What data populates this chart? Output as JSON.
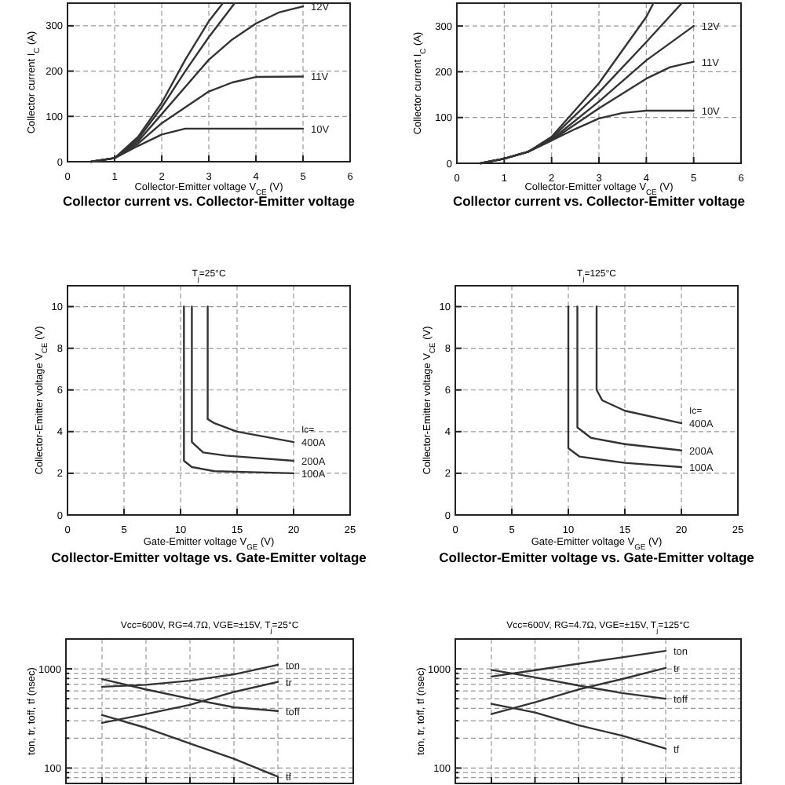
{
  "chart_data": [
    {
      "type": "line",
      "title": "Collector current vs. Collector-Emitter voltage",
      "xlabel": "Collector-Emitter voltage   V$_{CE}$ (V)",
      "ylabel": "Collector current   I$_{C}$ (A)",
      "xlim": [
        0,
        6
      ],
      "ylim": [
        0,
        350
      ],
      "xticks": [
        0,
        1,
        2,
        3,
        4,
        5,
        6
      ],
      "yticks": [
        0,
        100,
        200,
        300
      ],
      "grid": true,
      "series": [
        {
          "x": [
            0.5,
            1,
            1.5,
            2,
            2.5,
            3,
            3.3
          ],
          "values": [
            0,
            8,
            55,
            130,
            225,
            310,
            350
          ],
          "color": "#333333"
        },
        {
          "x": [
            0.5,
            1,
            1.5,
            2,
            2.5,
            3,
            3.55
          ],
          "values": [
            0,
            8,
            50,
            120,
            200,
            275,
            350
          ],
          "color": "#333333"
        },
        {
          "name": "12V",
          "x": [
            0.5,
            1,
            1.5,
            2,
            2.5,
            3,
            3.5,
            4,
            4.5,
            5
          ],
          "values": [
            0,
            8,
            45,
            105,
            165,
            225,
            270,
            305,
            330,
            343
          ],
          "color": "#333333"
        },
        {
          "name": "11V",
          "x": [
            0.5,
            1,
            1.5,
            2,
            2.5,
            3,
            3.5,
            4,
            5
          ],
          "values": [
            0,
            8,
            40,
            85,
            120,
            155,
            175,
            187,
            188
          ],
          "color": "#333333"
        },
        {
          "name": "10V",
          "x": [
            0.5,
            1,
            1.5,
            2,
            2.5,
            3,
            5
          ],
          "values": [
            0,
            8,
            35,
            60,
            73,
            73,
            73
          ],
          "color": "#333333"
        }
      ]
    },
    {
      "type": "line",
      "title": "Collector current vs. Collector-Emitter voltage",
      "xlabel": "Collector-Emitter voltage   V$_{CE}$ (V)",
      "ylabel": "Collector current   I$_{C}$ (A)",
      "xlim": [
        0,
        6
      ],
      "ylim": [
        0,
        350
      ],
      "xticks": [
        0,
        1,
        2,
        3,
        4,
        5,
        6
      ],
      "yticks": [
        0,
        100,
        200,
        300
      ],
      "grid": true,
      "series": [
        {
          "x": [
            0.5,
            1,
            1.5,
            2,
            3,
            4,
            4.15
          ],
          "values": [
            0,
            10,
            25,
            58,
            175,
            320,
            350
          ],
          "color": "#333333"
        },
        {
          "x": [
            0.5,
            1,
            1.5,
            2,
            3,
            4,
            4.75
          ],
          "values": [
            0,
            10,
            25,
            55,
            155,
            265,
            350
          ],
          "color": "#333333"
        },
        {
          "name": "12V",
          "x": [
            0.5,
            1,
            1.5,
            2,
            3,
            4,
            5
          ],
          "values": [
            0,
            10,
            25,
            52,
            135,
            225,
            300
          ],
          "color": "#333333"
        },
        {
          "name": "11V",
          "x": [
            0.5,
            1,
            1.5,
            2,
            3,
            4,
            4.5,
            5
          ],
          "values": [
            0,
            10,
            25,
            50,
            120,
            185,
            210,
            222
          ],
          "color": "#333333"
        },
        {
          "name": "10V",
          "x": [
            0.5,
            1,
            1.5,
            2,
            2.5,
            3,
            3.5,
            4,
            5
          ],
          "values": [
            0,
            10,
            25,
            50,
            75,
            98,
            110,
            115,
            115
          ],
          "color": "#333333"
        }
      ]
    },
    {
      "type": "line",
      "title": "Collector-Emitter voltage vs. Gate-Emitter voltage",
      "subtitle": "T$_{j}$=25°C",
      "xlabel": "Gate-Emitter voltage   V$_{GE}$ (V)",
      "ylabel": "Collector-Emitter voltage   V$_{CE}$ (V)",
      "xlim": [
        0,
        25
      ],
      "ylim": [
        0,
        11
      ],
      "xticks": [
        0,
        5,
        10,
        15,
        20,
        25
      ],
      "yticks": [
        0,
        2,
        4,
        6,
        8,
        10
      ],
      "grid": true,
      "annotations": [
        "Ic="
      ],
      "series": [
        {
          "name": "400A",
          "x": [
            12.4,
            12.4,
            13,
            15,
            17,
            20
          ],
          "values": [
            10,
            4.6,
            4.4,
            4.0,
            3.8,
            3.5
          ],
          "color": "#333333"
        },
        {
          "name": "200A",
          "x": [
            11,
            11,
            12,
            14,
            20
          ],
          "values": [
            10,
            3.5,
            3.0,
            2.85,
            2.6
          ],
          "color": "#333333"
        },
        {
          "name": "100A",
          "x": [
            10.3,
            10.3,
            11,
            13,
            20
          ],
          "values": [
            10,
            2.6,
            2.3,
            2.1,
            2.0
          ],
          "color": "#333333"
        }
      ]
    },
    {
      "type": "line",
      "title": "Collector-Emitter voltage vs. Gate-Emitter voltage",
      "subtitle": "T$_{j}$=125°C",
      "xlabel": "Gate-Emitter voltage   V$_{GE}$ (V)",
      "ylabel": "Collector-Emitter voltage   V$_{CE}$ (V)",
      "xlim": [
        0,
        25
      ],
      "ylim": [
        0,
        11
      ],
      "xticks": [
        0,
        5,
        10,
        15,
        20,
        25
      ],
      "yticks": [
        0,
        2,
        4,
        6,
        8,
        10
      ],
      "grid": true,
      "annotations": [
        "Ic="
      ],
      "series": [
        {
          "name": "400A",
          "x": [
            12.5,
            12.5,
            13,
            15,
            20
          ],
          "values": [
            10,
            6.0,
            5.5,
            5.0,
            4.4
          ],
          "color": "#333333"
        },
        {
          "name": "200A",
          "x": [
            10.8,
            10.8,
            12,
            15,
            20
          ],
          "values": [
            10,
            4.2,
            3.7,
            3.4,
            3.1
          ],
          "color": "#333333"
        },
        {
          "name": "100A",
          "x": [
            10,
            10,
            11,
            15,
            20
          ],
          "values": [
            10,
            3.2,
            2.8,
            2.5,
            2.3
          ],
          "color": "#333333"
        }
      ]
    },
    {
      "type": "line",
      "title": "Vcc=600V,  RG=4.7Ω,  VGE=±15V,  T$_{j}$=25°C",
      "ylabel": "ton, tr, toff, tf (nsec)",
      "log": true,
      "ylim": [
        70,
        2000
      ],
      "yticks": [
        {
          "value": 70,
          "label": null
        },
        {
          "value": 80,
          "label": null
        },
        {
          "value": 90,
          "label": null
        },
        100,
        {
          "value": 200,
          "label": null
        },
        {
          "value": 300,
          "label": null
        },
        {
          "value": 400,
          "label": null
        },
        {
          "value": 500,
          "label": null
        },
        {
          "value": 600,
          "label": null
        },
        {
          "value": 700,
          "label": null
        },
        {
          "value": 800,
          "label": null
        },
        {
          "value": 900,
          "label": null
        },
        1000,
        {
          "value": 2000,
          "label": null
        }
      ],
      "categories": [
        null,
        null,
        null,
        null,
        null
      ],
      "tick_labels": "y",
      "grid": true,
      "series": [
        {
          "name": "ton",
          "values": [
            660,
            690,
            760,
            880,
            1100
          ],
          "color": "#333333"
        },
        {
          "name": "tr",
          "values": [
            285,
            350,
            434,
            585,
            740
          ],
          "color": "#333333"
        },
        {
          "name": "toff",
          "values": [
            788,
            620,
            500,
            410,
            376
          ],
          "color": "#333333"
        },
        {
          "name": "tf",
          "values": [
            342,
            254,
            177,
            124,
            82
          ],
          "color": "#333333"
        }
      ]
    },
    {
      "type": "line",
      "title": "Vcc=600V,  RG=4.7Ω,  VGE=±15V,  T$_{j}$=125°C",
      "ylabel": "ton, tr, toff, tf (nsec)",
      "log": true,
      "ylim": [
        70,
        2000
      ],
      "yticks": [
        {
          "value": 70,
          "label": null
        },
        {
          "value": 80,
          "label": null
        },
        {
          "value": 90,
          "label": null
        },
        100,
        {
          "value": 200,
          "label": null
        },
        {
          "value": 300,
          "label": null
        },
        {
          "value": 400,
          "label": null
        },
        {
          "value": 500,
          "label": null
        },
        {
          "value": 600,
          "label": null
        },
        {
          "value": 700,
          "label": null
        },
        {
          "value": 800,
          "label": null
        },
        {
          "value": 900,
          "label": null
        },
        1000,
        {
          "value": 2000,
          "label": null
        }
      ],
      "categories": [
        null,
        null,
        null,
        null,
        null
      ],
      "tick_labels": "y",
      "grid": true,
      "series": [
        {
          "name": "ton",
          "values": [
            836,
            970,
            1127,
            1307,
            1518
          ],
          "color": "#333333"
        },
        {
          "name": "tr",
          "values": [
            350,
            460,
            620,
            790,
            1020
          ],
          "color": "#333333"
        },
        {
          "name": "toff",
          "values": [
            976,
            820,
            680,
            570,
            500
          ],
          "color": "#333333"
        },
        {
          "name": "tf",
          "values": [
            444,
            363,
            270,
            212,
            157
          ],
          "color": "#333333"
        }
      ]
    }
  ]
}
